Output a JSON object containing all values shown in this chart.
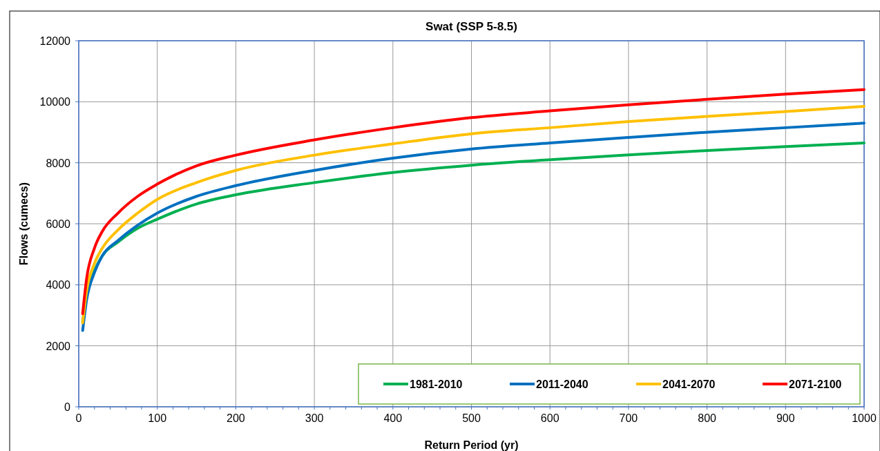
{
  "chart_data": {
    "type": "line",
    "title": "Swat (SSP 5-8.5)",
    "xlabel": "Return Period (yr)",
    "ylabel": "Flows (cumecs)",
    "x": [
      5,
      10,
      20,
      30,
      50,
      75,
      100,
      150,
      200,
      300,
      400,
      500,
      600,
      700,
      800,
      900,
      1000
    ],
    "xlim": [
      0,
      1000
    ],
    "xticks": [
      0,
      100,
      200,
      300,
      400,
      500,
      600,
      700,
      800,
      900,
      1000
    ],
    "ylim": [
      0,
      12000
    ],
    "yticks": [
      0,
      2000,
      4000,
      6000,
      8000,
      10000,
      12000
    ],
    "grid": true,
    "legend": "bottom right",
    "marker": "none",
    "line_style": "solid",
    "series": [
      {
        "name": "1981-2010",
        "color": "#00b050",
        "values": [
          2800,
          3600,
          4450,
          4950,
          5400,
          5850,
          6150,
          6650,
          6950,
          7350,
          7680,
          7920,
          8100,
          8260,
          8400,
          8530,
          8650
        ]
      },
      {
        "name": "2011-2040",
        "color": "#0070c0",
        "values": [
          2500,
          3500,
          4400,
          4950,
          5450,
          5950,
          6350,
          6900,
          7250,
          7750,
          8150,
          8450,
          8650,
          8830,
          9000,
          9150,
          9300
        ]
      },
      {
        "name": "2041-2070",
        "color": "#ffc000",
        "values": [
          2750,
          3800,
          4700,
          5200,
          5800,
          6350,
          6800,
          7350,
          7750,
          8250,
          8620,
          8950,
          9150,
          9350,
          9520,
          9680,
          9850
        ]
      },
      {
        "name": "2071-2100",
        "color": "#ff0000",
        "values": [
          3050,
          4200,
          5200,
          5750,
          6350,
          6900,
          7300,
          7900,
          8250,
          8750,
          9150,
          9480,
          9700,
          9900,
          10080,
          10250,
          10400
        ]
      }
    ]
  }
}
